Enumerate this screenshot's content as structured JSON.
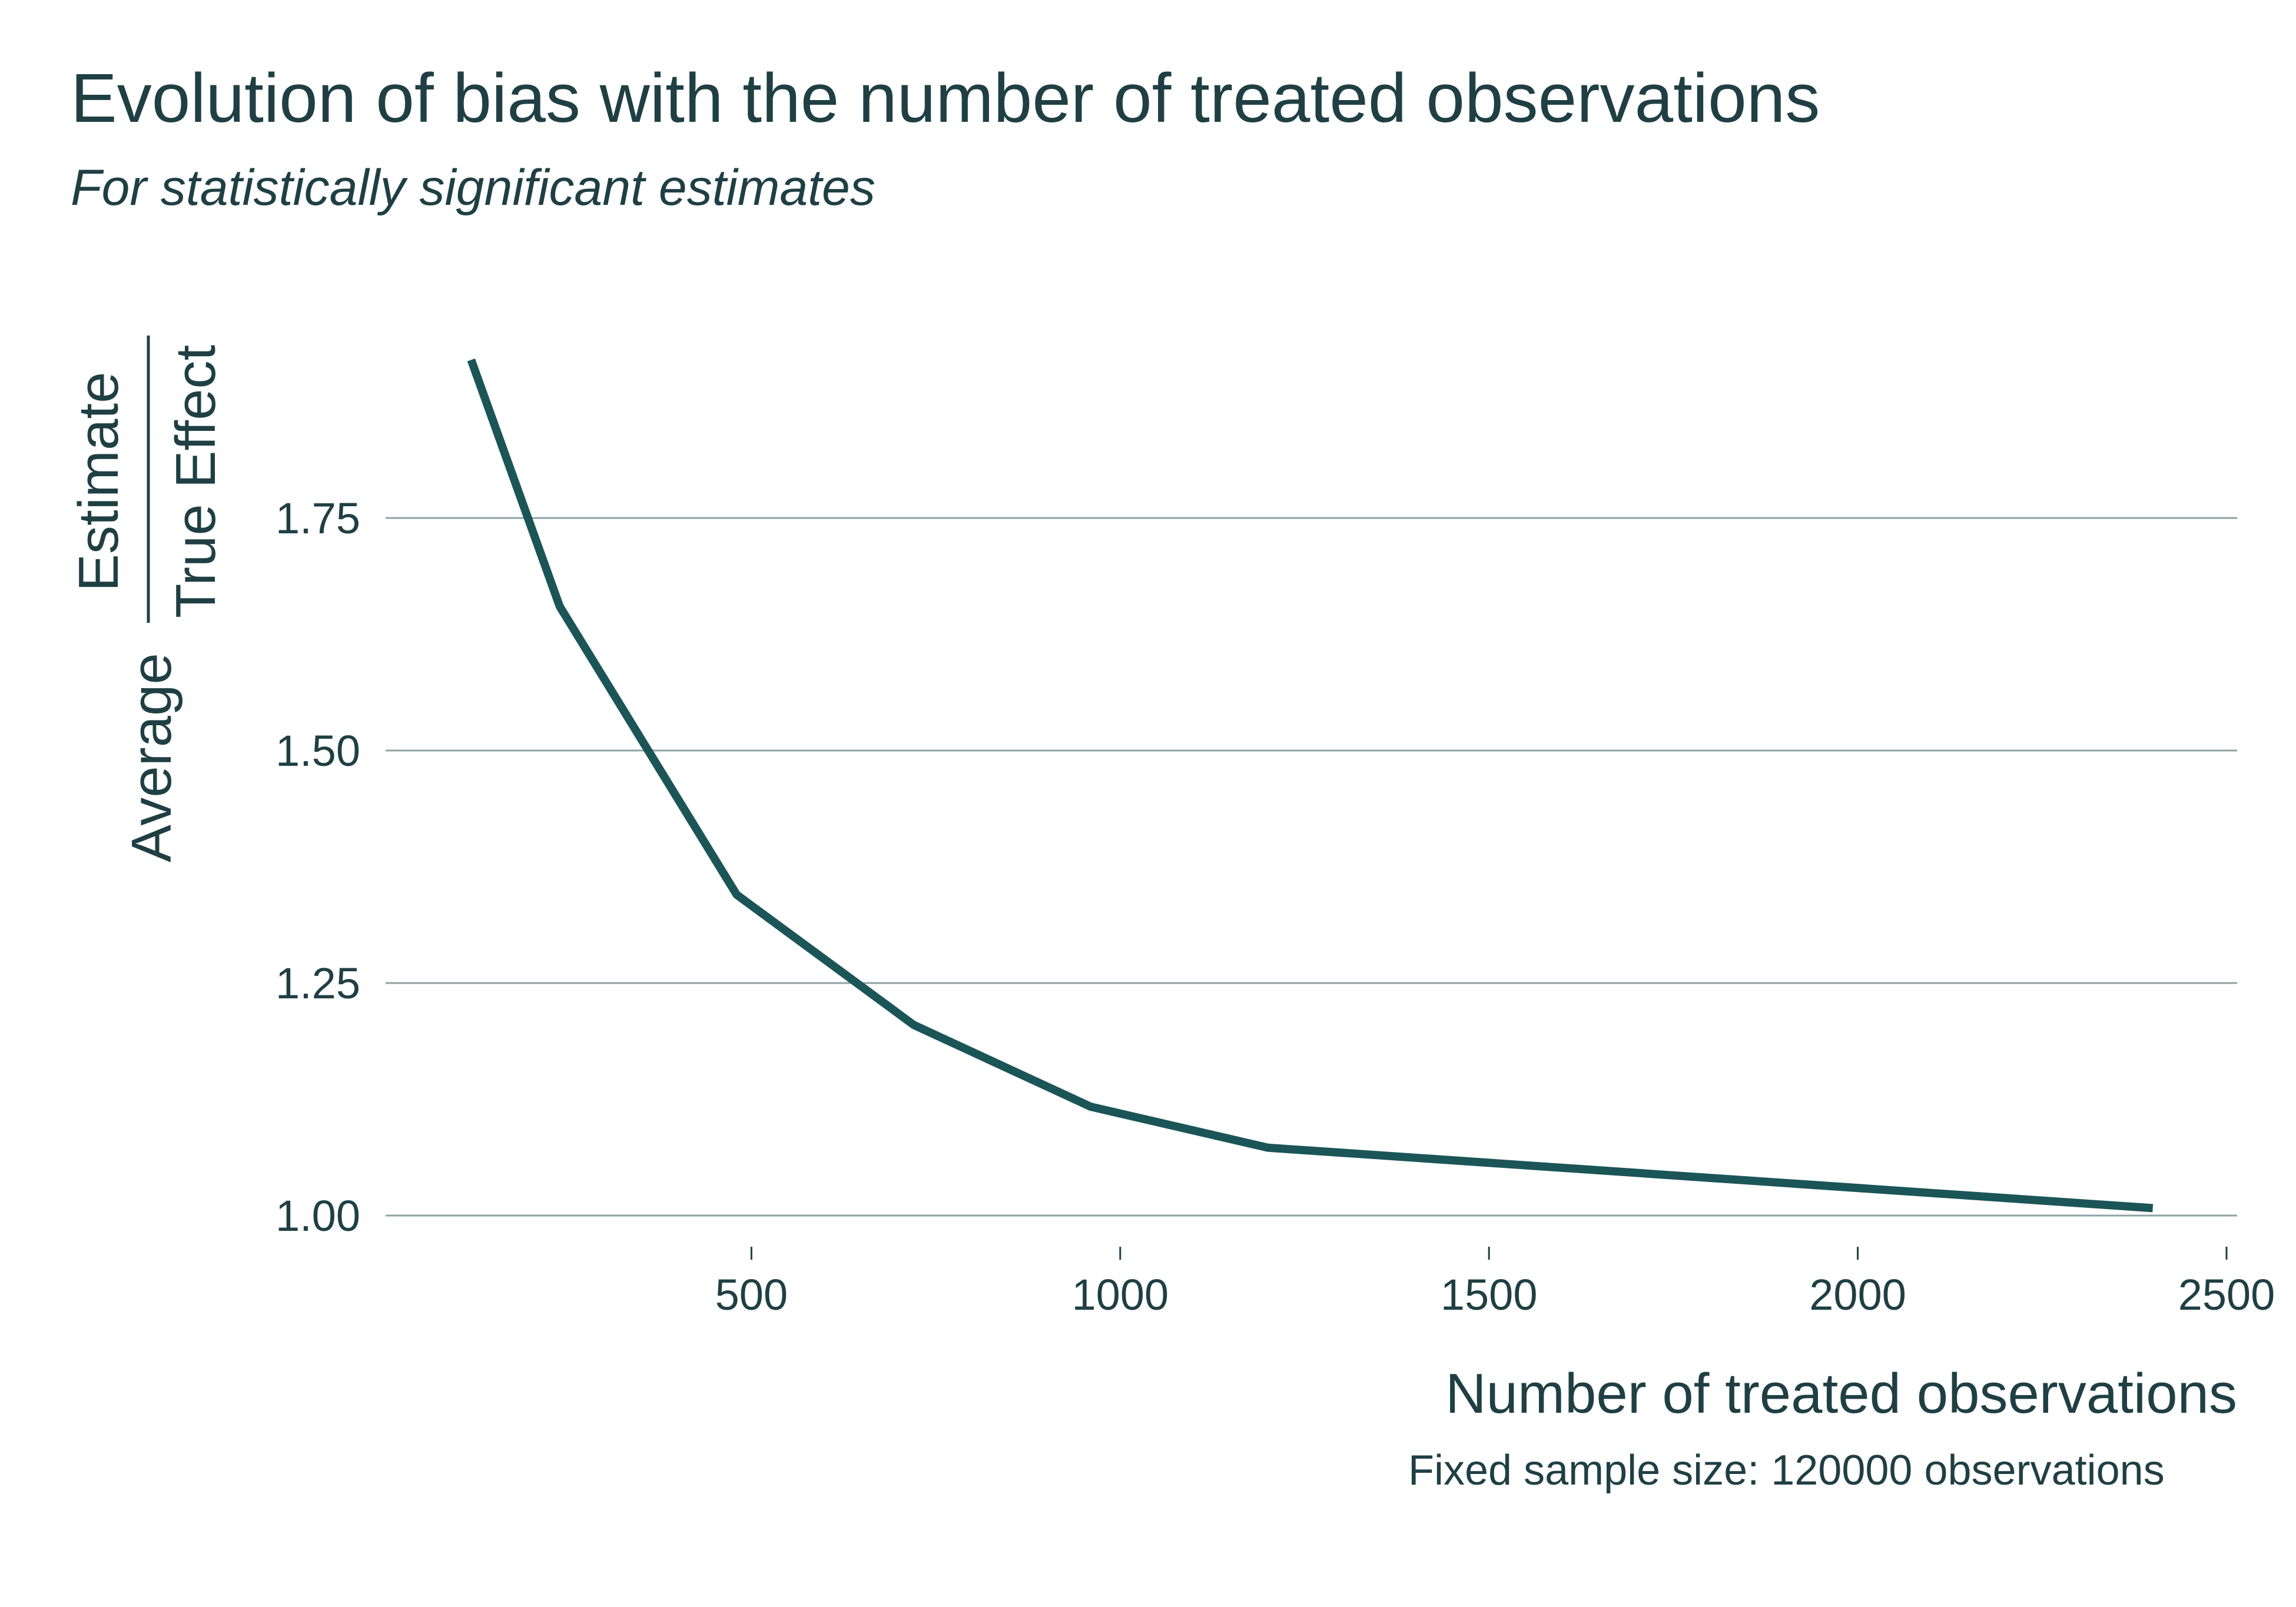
{
  "header": {
    "title": "Evolution of bias with the number of treated observations",
    "subtitle": "For statistically significant estimates"
  },
  "chart_data": {
    "type": "line",
    "title": "Evolution of bias with the number of treated observations",
    "subtitle": "For statistically significant estimates",
    "xlabel": "Number of treated observations",
    "x_caption": "Fixed sample size: 120000 observations",
    "ylabel": {
      "prefix": "Average",
      "numerator": "Estimate",
      "denominator": "True Effect"
    },
    "xlim": [
      0,
      2500
    ],
    "ylim": [
      0.95,
      2.1
    ],
    "x_ticks": [
      500,
      1000,
      1500,
      2000,
      2500
    ],
    "x_tick_labels": [
      "500",
      "1000",
      "1500",
      "2000",
      "2500"
    ],
    "y_ticks": [
      1.0,
      1.25,
      1.5,
      1.75
    ],
    "y_tick_labels": [
      "1.00",
      "1.25",
      "1.50",
      "1.75"
    ],
    "grid": "horizontal",
    "line_color": "#1b5558",
    "series": [
      {
        "x": [
          120,
          240,
          480,
          720,
          960,
          1200,
          2400
        ],
        "values": [
          1.92,
          1.655,
          1.345,
          1.205,
          1.117,
          1.073,
          1.008
        ]
      }
    ]
  }
}
